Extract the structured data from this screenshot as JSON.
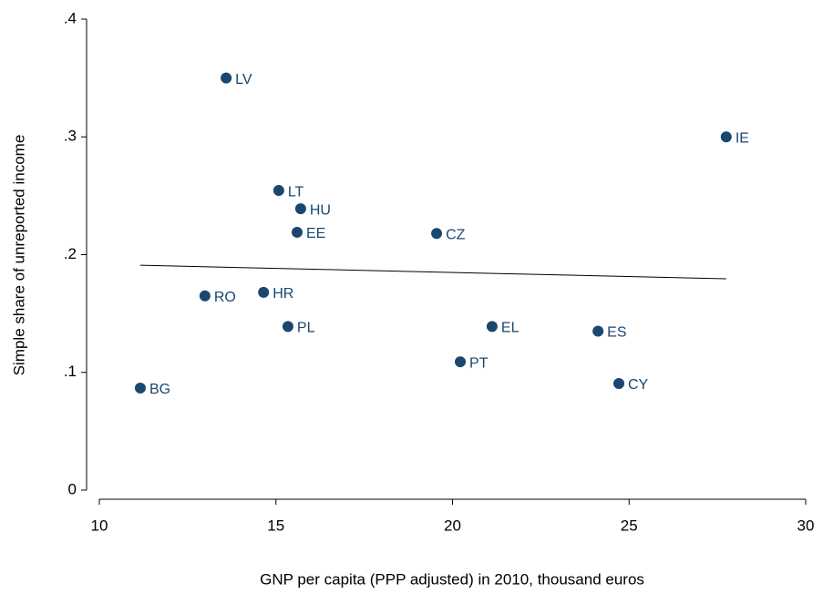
{
  "chart_data": {
    "type": "scatter",
    "xlabel": "GNP per capita (PPP adjusted) in 2010, thousand euros",
    "ylabel": "Simple share of unreported income",
    "labels": [
      "LV",
      "IE",
      "LT",
      "HU",
      "EE",
      "CZ",
      "RO",
      "HR",
      "PL",
      "EL",
      "ES",
      "PT",
      "CY",
      "BG"
    ],
    "x": [
      13.59,
      27.75,
      15.08,
      15.7,
      15.6,
      19.55,
      12.99,
      14.65,
      15.34,
      21.12,
      24.12,
      20.22,
      24.71,
      11.16
    ],
    "values": [
      0.35,
      0.3,
      0.2545,
      0.239,
      0.219,
      0.218,
      0.165,
      0.168,
      0.139,
      0.139,
      0.135,
      0.109,
      0.0905,
      0.0867
    ],
    "color": "#1a476f",
    "fit_line": {
      "x": [
        11.16,
        27.75
      ],
      "values": [
        0.191,
        0.1795
      ],
      "color": "#000000"
    },
    "xlim": [
      10,
      30
    ],
    "ylim": [
      0,
      0.4
    ],
    "xticks": [
      10,
      15,
      20,
      25,
      30
    ],
    "yticks": [
      0,
      {
        "value": 0.1,
        "label": ".1"
      },
      {
        "value": 0.2,
        "label": ".2"
      },
      {
        "value": 0.3,
        "label": ".3"
      },
      {
        "value": 0.4,
        "label": ".4"
      }
    ]
  }
}
